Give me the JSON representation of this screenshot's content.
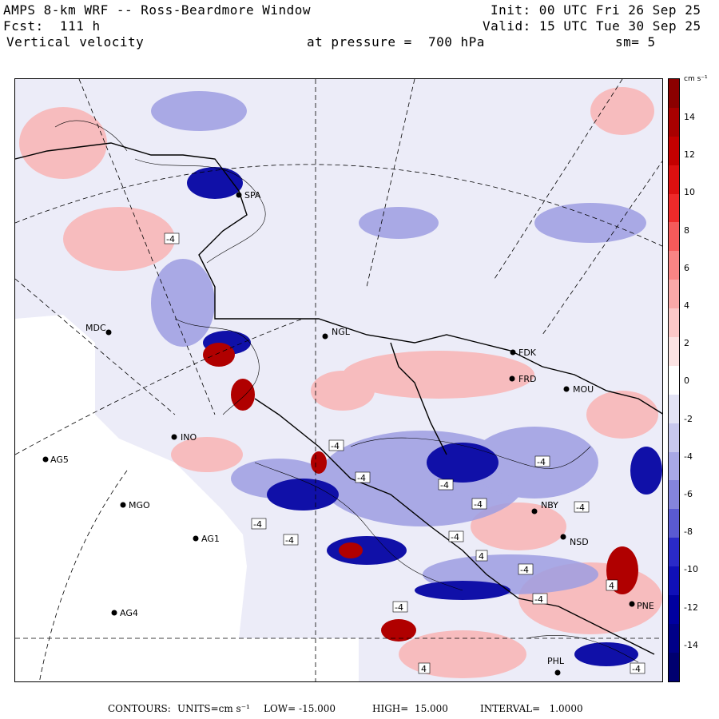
{
  "header": {
    "line1_left": "AMPS 8-km WRF -- Ross-Beardmore Window",
    "line1_right": "Init: 00 UTC Fri 26 Sep 25",
    "line2_left": "Fcst:  111 h",
    "line2_right": "Valid: 15 UTC Tue 30 Sep 25",
    "line3_left": "Vertical velocity",
    "line3_mid": "at pressure =  700 hPa",
    "line3_right": "sm= 5"
  },
  "colorbar": {
    "units_label": "cm s⁻¹",
    "tick_labels": [
      "14",
      "12",
      "10",
      "8",
      "6",
      "4",
      "2",
      "0",
      "-2",
      "-4",
      "-6",
      "-8",
      "-10",
      "-12",
      "-14"
    ],
    "colors_top_to_bottom": [
      "#8b0000",
      "#a80000",
      "#c40000",
      "#dc1010",
      "#ee2a2a",
      "#f55a5a",
      "#f88484",
      "#f9a8a8",
      "#fbc8c8",
      "#fbe3e3",
      "#ffffff",
      "#e3e3f5",
      "#c8c8ee",
      "#a8a8e6",
      "#8484dc",
      "#5a5ad2",
      "#2a2ac8",
      "#1010b8",
      "#0000a0",
      "#000088",
      "#000070"
    ]
  },
  "stations": [
    {
      "label": "MDC"
    },
    {
      "label": "NGL"
    },
    {
      "label": "FDK"
    },
    {
      "label": "FRD"
    },
    {
      "label": "MOU"
    },
    {
      "label": "INO"
    },
    {
      "label": "AG5"
    },
    {
      "label": "MGO"
    },
    {
      "label": "AG1"
    },
    {
      "label": "AG4"
    },
    {
      "label": "NBY"
    },
    {
      "label": "NSD"
    },
    {
      "label": "PHL"
    },
    {
      "label": "PNE"
    },
    {
      "label": "SPA"
    }
  ],
  "contour_labels": [
    "-4",
    "-4",
    "-4",
    "-4",
    "-4",
    "-4",
    "-4",
    "-4",
    "-4",
    "-4",
    "-4",
    "-4",
    "-4",
    "-4",
    "4",
    "4",
    "4"
  ],
  "footer": {
    "contours": "CONTOURS:",
    "units": "UNITS=cm s⁻¹",
    "low": "LOW= -15.000",
    "high": "HIGH=  15.000",
    "interval": "INTERVAL=   1.0000"
  }
}
